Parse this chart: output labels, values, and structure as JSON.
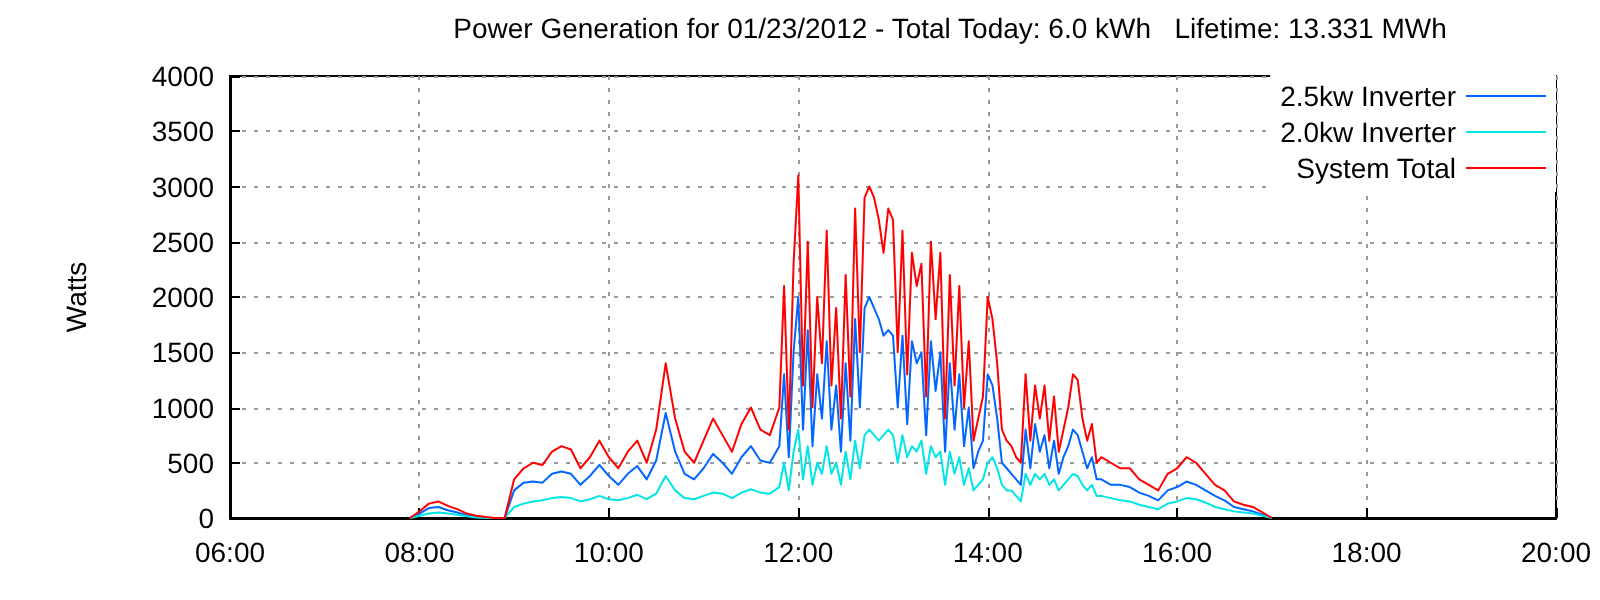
{
  "chart_data": {
    "type": "line",
    "title": "Power Generation for 01/23/2012 - Total Today: 6.0 kWh   Lifetime: 13.331 MWh",
    "ylabel": "Watts",
    "x": [
      7.9,
      8.0,
      8.1,
      8.2,
      8.3,
      8.4,
      8.5,
      8.6,
      8.7,
      8.8,
      8.9,
      9.0,
      9.1,
      9.2,
      9.3,
      9.4,
      9.5,
      9.6,
      9.7,
      9.8,
      9.9,
      10.0,
      10.1,
      10.2,
      10.3,
      10.4,
      10.5,
      10.6,
      10.7,
      10.8,
      10.9,
      11.0,
      11.1,
      11.2,
      11.3,
      11.4,
      11.5,
      11.6,
      11.7,
      11.8,
      11.85,
      11.9,
      11.95,
      12.0,
      12.05,
      12.1,
      12.15,
      12.2,
      12.25,
      12.3,
      12.35,
      12.4,
      12.45,
      12.5,
      12.55,
      12.6,
      12.65,
      12.7,
      12.75,
      12.8,
      12.85,
      12.9,
      12.95,
      13.0,
      13.05,
      13.1,
      13.15,
      13.2,
      13.25,
      13.3,
      13.35,
      13.4,
      13.45,
      13.5,
      13.55,
      13.6,
      13.65,
      13.7,
      13.75,
      13.8,
      13.85,
      13.9,
      13.95,
      14.0,
      14.05,
      14.1,
      14.15,
      14.2,
      14.25,
      14.3,
      14.35,
      14.4,
      14.45,
      14.5,
      14.55,
      14.6,
      14.65,
      14.7,
      14.75,
      14.8,
      14.85,
      14.9,
      14.95,
      15.0,
      15.05,
      15.1,
      15.15,
      15.2,
      15.3,
      15.4,
      15.5,
      15.6,
      15.7,
      15.8,
      15.9,
      16.0,
      16.1,
      16.2,
      16.3,
      16.4,
      16.5,
      16.6,
      16.7,
      16.8,
      16.9,
      17.0
    ],
    "series": [
      {
        "name": "2.5kw Inverter",
        "color": "#0066ff",
        "values": [
          0,
          40,
          90,
          100,
          70,
          50,
          25,
          10,
          0,
          0,
          0,
          250,
          320,
          330,
          320,
          400,
          420,
          400,
          300,
          380,
          480,
          380,
          300,
          400,
          470,
          350,
          520,
          950,
          600,
          400,
          350,
          450,
          580,
          500,
          400,
          550,
          650,
          520,
          500,
          650,
          1300,
          550,
          1500,
          2000,
          800,
          1700,
          650,
          1300,
          900,
          1600,
          800,
          1200,
          600,
          1400,
          700,
          1800,
          1000,
          1900,
          2000,
          1900,
          1800,
          1650,
          1700,
          1650,
          1000,
          1650,
          850,
          1600,
          1400,
          1500,
          750,
          1600,
          1150,
          1500,
          600,
          1400,
          800,
          1300,
          650,
          1000,
          450,
          600,
          700,
          1300,
          1200,
          900,
          500,
          450,
          400,
          350,
          300,
          800,
          450,
          850,
          600,
          750,
          450,
          700,
          400,
          550,
          650,
          800,
          750,
          600,
          450,
          550,
          350,
          350,
          300,
          300,
          280,
          230,
          200,
          160,
          250,
          280,
          330,
          300,
          250,
          200,
          160,
          100,
          80,
          60,
          30,
          0
        ]
      },
      {
        "name": "2.0kw Inverter",
        "color": "#00e5e5",
        "values": [
          0,
          20,
          40,
          50,
          40,
          30,
          15,
          5,
          0,
          0,
          0,
          100,
          130,
          150,
          160,
          180,
          190,
          180,
          150,
          170,
          200,
          170,
          160,
          180,
          210,
          170,
          220,
          380,
          250,
          180,
          170,
          200,
          230,
          220,
          180,
          230,
          260,
          230,
          220,
          280,
          500,
          250,
          600,
          800,
          350,
          650,
          300,
          500,
          400,
          650,
          400,
          500,
          300,
          600,
          350,
          700,
          450,
          750,
          800,
          750,
          700,
          750,
          800,
          750,
          500,
          750,
          550,
          650,
          600,
          700,
          400,
          650,
          550,
          600,
          300,
          600,
          400,
          550,
          300,
          450,
          250,
          300,
          350,
          500,
          550,
          450,
          300,
          250,
          250,
          200,
          150,
          400,
          300,
          400,
          350,
          400,
          300,
          350,
          250,
          300,
          350,
          400,
          380,
          300,
          250,
          300,
          200,
          200,
          180,
          160,
          150,
          120,
          100,
          80,
          130,
          150,
          180,
          170,
          140,
          100,
          80,
          60,
          50,
          40,
          20,
          0
        ]
      },
      {
        "name": "System Total",
        "color": "#ff0000",
        "values": [
          0,
          60,
          130,
          150,
          110,
          80,
          40,
          20,
          10,
          0,
          0,
          350,
          450,
          500,
          480,
          600,
          650,
          620,
          450,
          550,
          700,
          550,
          450,
          600,
          700,
          500,
          800,
          1400,
          900,
          600,
          500,
          700,
          900,
          750,
          600,
          850,
          1000,
          800,
          750,
          1000,
          2100,
          800,
          2300,
          3100,
          1200,
          2500,
          1000,
          2000,
          1400,
          2600,
          1200,
          1900,
          900,
          2200,
          1100,
          2800,
          1500,
          2900,
          3000,
          2900,
          2700,
          2400,
          2800,
          2700,
          1500,
          2600,
          1300,
          2400,
          2100,
          2300,
          1100,
          2500,
          1800,
          2400,
          900,
          2200,
          1200,
          2100,
          1000,
          1600,
          700,
          900,
          1100,
          2000,
          1800,
          1400,
          800,
          700,
          650,
          550,
          500,
          1300,
          700,
          1200,
          900,
          1200,
          700,
          1100,
          600,
          800,
          1000,
          1300,
          1250,
          900,
          700,
          850,
          500,
          550,
          500,
          450,
          450,
          350,
          300,
          250,
          400,
          450,
          550,
          500,
          400,
          300,
          250,
          150,
          120,
          100,
          50,
          0
        ]
      }
    ],
    "xlim": [
      6,
      20
    ],
    "xticks": [
      {
        "value": 6,
        "label": "06:00"
      },
      {
        "value": 8,
        "label": "08:00"
      },
      {
        "value": 10,
        "label": "10:00"
      },
      {
        "value": 12,
        "label": "12:00"
      },
      {
        "value": 14,
        "label": "14:00"
      },
      {
        "value": 16,
        "label": "16:00"
      },
      {
        "value": 18,
        "label": "18:00"
      },
      {
        "value": 20,
        "label": "20:00"
      }
    ],
    "ylim": [
      0,
      4000
    ],
    "yticks": [
      0,
      500,
      1000,
      1500,
      2000,
      2500,
      3000,
      3500,
      4000
    ],
    "grid": true,
    "legend": "top right",
    "marker": "none",
    "line_style": "solid"
  }
}
